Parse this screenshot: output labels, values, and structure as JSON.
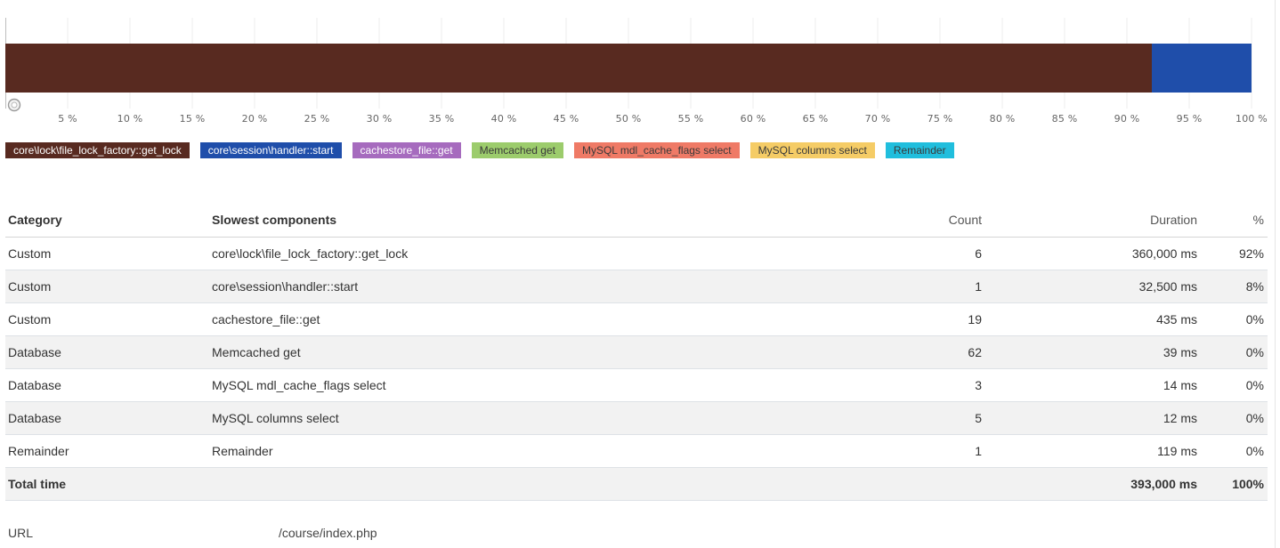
{
  "chart_data": {
    "type": "bar",
    "orientation": "horizontal-stacked",
    "categories": [
      ""
    ],
    "series": [
      {
        "name": "core\\lock\\file_lock_factory::get_lock",
        "values": [
          92
        ]
      },
      {
        "name": "core\\session\\handler::start",
        "values": [
          8
        ]
      },
      {
        "name": "cachestore_file::get",
        "values": [
          0
        ]
      },
      {
        "name": "Memcached get",
        "values": [
          0
        ]
      },
      {
        "name": "MySQL mdl_cache_flags select",
        "values": [
          0
        ]
      },
      {
        "name": "MySQL columns select",
        "values": [
          0
        ]
      },
      {
        "name": "Remainder",
        "values": [
          0
        ]
      }
    ],
    "xlim": [
      0,
      100
    ],
    "xticks": [
      "5 %",
      "10 %",
      "15 %",
      "20 %",
      "25 %",
      "30 %",
      "35 %",
      "40 %",
      "45 %",
      "50 %",
      "55 %",
      "60 %",
      "65 %",
      "70 %",
      "75 %",
      "80 %",
      "85 %",
      "90 %",
      "95 %",
      "100 %"
    ],
    "grid": true,
    "legend_position": "bottom-left"
  },
  "legend": [
    {
      "label": "core\\lock\\file_lock_factory::get_lock",
      "color": "#582a20"
    },
    {
      "label": "core\\session\\handler::start",
      "color": "#1f4eaa"
    },
    {
      "label": "cachestore_file::get",
      "color": "#a66bbe"
    },
    {
      "label": "Memcached get",
      "color": "#9ccc6c"
    },
    {
      "label": "MySQL mdl_cache_flags select",
      "color": "#ef7a66"
    },
    {
      "label": "MySQL columns select",
      "color": "#f5cc66"
    },
    {
      "label": "Remainder",
      "color": "#20bedd"
    }
  ],
  "table": {
    "headers": {
      "category": "Category",
      "component": "Slowest components",
      "count": "Count",
      "duration": "Duration",
      "percent": "%"
    },
    "rows": [
      {
        "category": "Custom",
        "component": "core\\lock\\file_lock_factory::get_lock",
        "count": "6",
        "duration": "360,000 ms",
        "percent": "92%"
      },
      {
        "category": "Custom",
        "component": "core\\session\\handler::start",
        "count": "1",
        "duration": "32,500 ms",
        "percent": "8%"
      },
      {
        "category": "Custom",
        "component": "cachestore_file::get",
        "count": "19",
        "duration": "435 ms",
        "percent": "0%"
      },
      {
        "category": "Database",
        "component": "Memcached get",
        "count": "62",
        "duration": "39 ms",
        "percent": "0%"
      },
      {
        "category": "Database",
        "component": "MySQL mdl_cache_flags select",
        "count": "3",
        "duration": "14 ms",
        "percent": "0%"
      },
      {
        "category": "Database",
        "component": "MySQL columns select",
        "count": "5",
        "duration": "12 ms",
        "percent": "0%"
      },
      {
        "category": "Remainder",
        "component": "Remainder",
        "count": "1",
        "duration": "119 ms",
        "percent": "0%"
      }
    ],
    "total": {
      "label": "Total time",
      "duration": "393,000 ms",
      "percent": "100%"
    }
  },
  "url": {
    "label": "URL",
    "value": "/course/index.php"
  }
}
